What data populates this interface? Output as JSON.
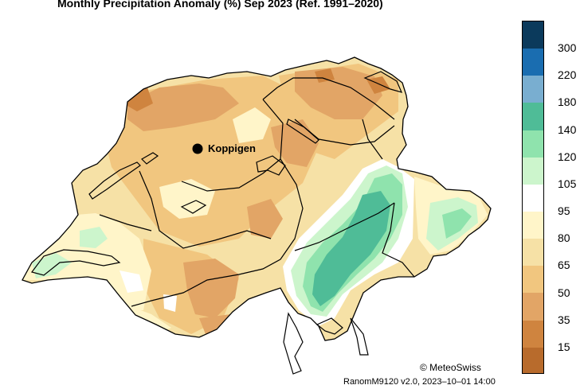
{
  "title": "Monthly Precipitation Anomaly (%) Sep 2023  (Ref. 1991–2020)",
  "station": {
    "name": "Koppigen"
  },
  "legend": {
    "labels": [
      "300",
      "220",
      "180",
      "140",
      "120",
      "105",
      "95",
      "80",
      "65",
      "50",
      "35",
      "15"
    ],
    "colors": [
      "#0b3a5c",
      "#1a6db0",
      "#79aed0",
      "#4fbc97",
      "#8fe3ad",
      "#ccf5cc",
      "#ffffff",
      "#fff5c9",
      "#f6e1a6",
      "#f1c67f",
      "#e2a566",
      "#cf843f",
      "#b86b2c"
    ]
  },
  "credit": "© MeteoSwiss",
  "version": "RanomM9120 v2.0, 2023–10–01 14:00"
}
